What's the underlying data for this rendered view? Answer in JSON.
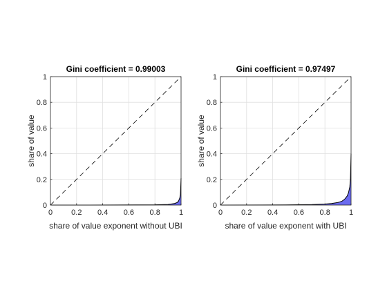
{
  "figure": {
    "background": "#ffffff"
  },
  "chart_data": [
    {
      "type": "area",
      "title": "Gini coefficient = 0.99003",
      "xlabel": "share of value exponent without UBI",
      "ylabel": "share of value",
      "xlim": [
        0,
        1
      ],
      "ylim": [
        0,
        1
      ],
      "x_ticks": [
        "0",
        "0.2",
        "0.4",
        "0.6",
        "0.8",
        "1"
      ],
      "y_ticks": [
        "0",
        "0.2",
        "0.4",
        "0.6",
        "0.8",
        "1"
      ],
      "grid": true,
      "series": [
        {
          "style": "lorenz-curve-filled",
          "color": "#000000",
          "fill": "#6b6bf0",
          "x": [
            0,
            0.5,
            0.8,
            0.9,
            0.95,
            0.97,
            0.98,
            0.99,
            0.995,
            1.0
          ],
          "y": [
            0,
            0.0005,
            0.002,
            0.005,
            0.012,
            0.02,
            0.03,
            0.055,
            0.08,
            0.21
          ]
        },
        {
          "style": "equality-line-dashed",
          "color": "#000000",
          "x": [
            0,
            1
          ],
          "y": [
            0,
            1
          ]
        }
      ]
    },
    {
      "type": "area",
      "title": "Gini coefficient = 0.97497",
      "xlabel": "share of value exponent with UBI",
      "ylabel": "share of value",
      "xlim": [
        0,
        1
      ],
      "ylim": [
        0,
        1
      ],
      "x_ticks": [
        "0",
        "0.2",
        "0.4",
        "0.6",
        "0.8",
        "1"
      ],
      "y_ticks": [
        "0",
        "0.2",
        "0.4",
        "0.6",
        "0.8",
        "1"
      ],
      "grid": true,
      "series": [
        {
          "style": "lorenz-curve-filled",
          "color": "#000000",
          "fill": "#6b6bf0",
          "x": [
            0,
            0.5,
            0.7,
            0.8,
            0.85,
            0.9,
            0.93,
            0.95,
            0.97,
            0.98,
            0.99,
            0.995,
            1.0
          ],
          "y": [
            0,
            0.001,
            0.004,
            0.008,
            0.012,
            0.02,
            0.03,
            0.045,
            0.07,
            0.095,
            0.14,
            0.2,
            0.4
          ]
        },
        {
          "style": "equality-line-dashed",
          "color": "#000000",
          "x": [
            0,
            1
          ],
          "y": [
            0,
            1
          ]
        }
      ]
    }
  ]
}
